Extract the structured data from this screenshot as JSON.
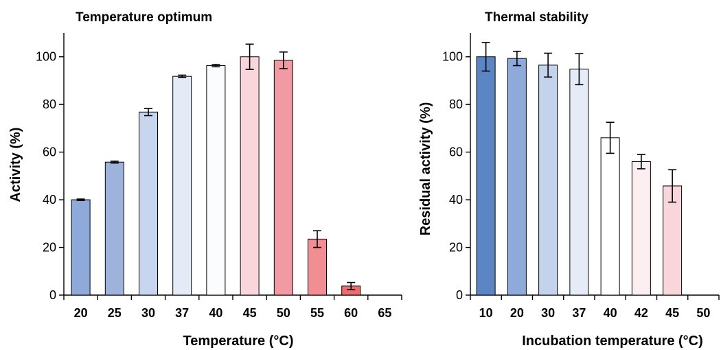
{
  "chart_data": [
    {
      "type": "bar",
      "title": "Temperature optimum",
      "xlabel": "Temperature (°C)",
      "ylabel": "Activity (%)",
      "ylim": [
        0,
        110
      ],
      "yticks": [
        0,
        20,
        40,
        60,
        80,
        100
      ],
      "grid": false,
      "categories": [
        "20",
        "25",
        "30",
        "37",
        "40",
        "45",
        "50",
        "55",
        "60",
        "65"
      ],
      "values": [
        40,
        55.8,
        76.8,
        91.8,
        96.3,
        100,
        98.5,
        23.5,
        3.8,
        0
      ],
      "errors": [
        0.3,
        0.4,
        1.5,
        0.5,
        0.5,
        5.3,
        3.5,
        3.5,
        1.5,
        0
      ],
      "colors": [
        "#8EAADB",
        "#9DB3DC",
        "#C7D6EE",
        "#E5EBF6",
        "#FBFCFE",
        "#F9D6DC",
        "#F29AA4",
        "#F28D93",
        "#EF6B70",
        "#FFFFFF"
      ]
    },
    {
      "type": "bar",
      "title": "Thermal stability",
      "xlabel": "Incubation temperature (°C)",
      "ylabel": "Residual activity (%)",
      "ylim": [
        0,
        110
      ],
      "yticks": [
        0,
        20,
        40,
        60,
        80,
        100
      ],
      "grid": false,
      "categories": [
        "10",
        "20",
        "30",
        "37",
        "40",
        "42",
        "45",
        "50"
      ],
      "values": [
        100,
        99.3,
        96.5,
        94.8,
        66,
        56,
        45.8,
        0
      ],
      "errors": [
        6,
        3,
        5,
        6.5,
        6.5,
        3,
        6.8,
        0
      ],
      "colors": [
        "#5B86C3",
        "#8EAADB",
        "#C4D3EC",
        "#E6ECF7",
        "#FFFFFF",
        "#FBEFF1",
        "#F9D6DC",
        "#FFFFFF"
      ]
    }
  ]
}
